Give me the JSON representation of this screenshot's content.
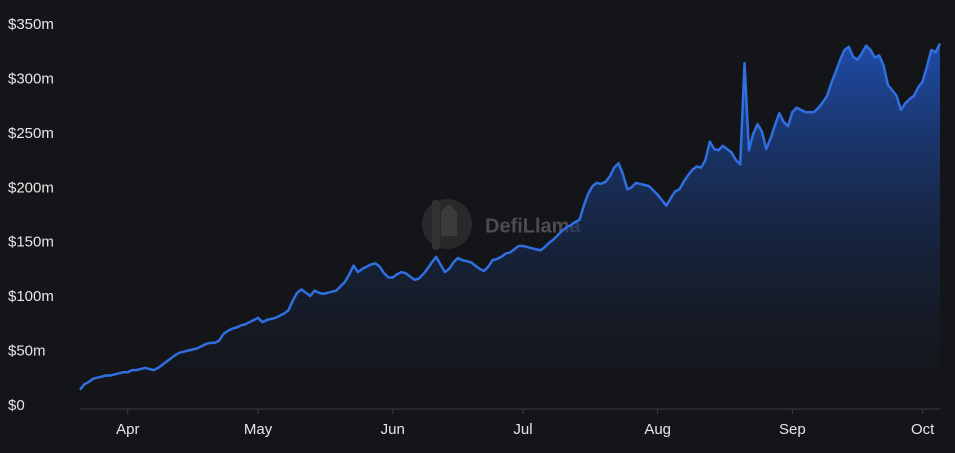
{
  "chart_data": {
    "type": "line",
    "area": true,
    "grid": false,
    "color": "#2f6fe0",
    "watermark": "DefiLlama",
    "categories": [
      null,
      null,
      null,
      null,
      null,
      null,
      null,
      null,
      null,
      null,
      null,
      "Apr",
      null,
      null,
      null,
      null,
      null,
      null,
      null,
      null,
      null,
      null,
      null,
      null,
      null,
      null,
      null,
      null,
      null,
      null,
      null,
      null,
      null,
      null,
      null,
      null,
      null,
      null,
      null,
      null,
      null,
      "May",
      null,
      null,
      null,
      null,
      null,
      null,
      null,
      null,
      null,
      null,
      null,
      null,
      null,
      null,
      null,
      null,
      null,
      null,
      null,
      null,
      null,
      null,
      null,
      null,
      null,
      null,
      null,
      null,
      null,
      null,
      "Jun",
      null,
      null,
      null,
      null,
      null,
      null,
      null,
      null,
      null,
      null,
      null,
      null,
      null,
      null,
      null,
      null,
      null,
      null,
      null,
      null,
      null,
      null,
      null,
      null,
      null,
      null,
      null,
      null,
      null,
      "Jul",
      null,
      null,
      null,
      null,
      null,
      null,
      null,
      null,
      null,
      null,
      null,
      null,
      null,
      null,
      null,
      null,
      null,
      null,
      null,
      null,
      null,
      null,
      null,
      null,
      null,
      null,
      null,
      null,
      null,
      null,
      "Aug",
      null,
      null,
      null,
      null,
      null,
      null,
      null,
      null,
      null,
      null,
      null,
      null,
      null,
      null,
      null,
      null,
      null,
      null,
      null,
      null,
      null,
      null,
      null,
      null,
      null,
      null,
      null,
      null,
      null,
      null,
      "Sep",
      null,
      null,
      null,
      null,
      null,
      null,
      null,
      null,
      null,
      null,
      null,
      null,
      null,
      null,
      null,
      null,
      null,
      null,
      null,
      null,
      null,
      null,
      null,
      null,
      null,
      null,
      null,
      null,
      null,
      "Oct",
      null,
      null,
      null,
      null
    ],
    "values": [
      15,
      20,
      22,
      25,
      26,
      27,
      28,
      28,
      29,
      30,
      31,
      31,
      33,
      33,
      34,
      35,
      34,
      33,
      35,
      38,
      41,
      44,
      47,
      49,
      50,
      51,
      52,
      53,
      55,
      57,
      58,
      58,
      60,
      66,
      69,
      71,
      72,
      74,
      75,
      77,
      79,
      81,
      77,
      79,
      80,
      81,
      83,
      85,
      88,
      97,
      104,
      107,
      104,
      101,
      106,
      104,
      103,
      104,
      105,
      106,
      110,
      114,
      121,
      129,
      123,
      126,
      128,
      130,
      131,
      128,
      122,
      118,
      118,
      121,
      123,
      122,
      119,
      116,
      117,
      121,
      126,
      132,
      137,
      130,
      123,
      126,
      132,
      136,
      134,
      133,
      132,
      129,
      126,
      124,
      128,
      134,
      135,
      137,
      140,
      141,
      144,
      147,
      147,
      146,
      145,
      144,
      143,
      146,
      150,
      153,
      157,
      161,
      164,
      166,
      169,
      171,
      184,
      195,
      202,
      205,
      204,
      206,
      211,
      219,
      223,
      213,
      199,
      201,
      205,
      204,
      203,
      202,
      198,
      194,
      189,
      184,
      191,
      197,
      199,
      206,
      212,
      217,
      220,
      219,
      226,
      243,
      236,
      235,
      239,
      236,
      233,
      226,
      222,
      315,
      235,
      250,
      259,
      252,
      236,
      246,
      258,
      269,
      261,
      257,
      270,
      274,
      272,
      270,
      270,
      270,
      274,
      279,
      285,
      297,
      307,
      318,
      327,
      330,
      321,
      318,
      324,
      331,
      327,
      320,
      322,
      313,
      295,
      290,
      285,
      272,
      278,
      282,
      285,
      293,
      298,
      312,
      327,
      325,
      333
    ],
    "ylim": [
      0,
      350
    ],
    "yticks": [
      {
        "value": 0,
        "label": "$0"
      },
      {
        "value": 50,
        "label": "$50m"
      },
      {
        "value": 100,
        "label": "$100m"
      },
      {
        "value": 150,
        "label": "$150m"
      },
      {
        "value": 200,
        "label": "$200m"
      },
      {
        "value": 250,
        "label": "$250m"
      },
      {
        "value": 300,
        "label": "$300m"
      },
      {
        "value": 350,
        "label": "$350m"
      }
    ]
  }
}
